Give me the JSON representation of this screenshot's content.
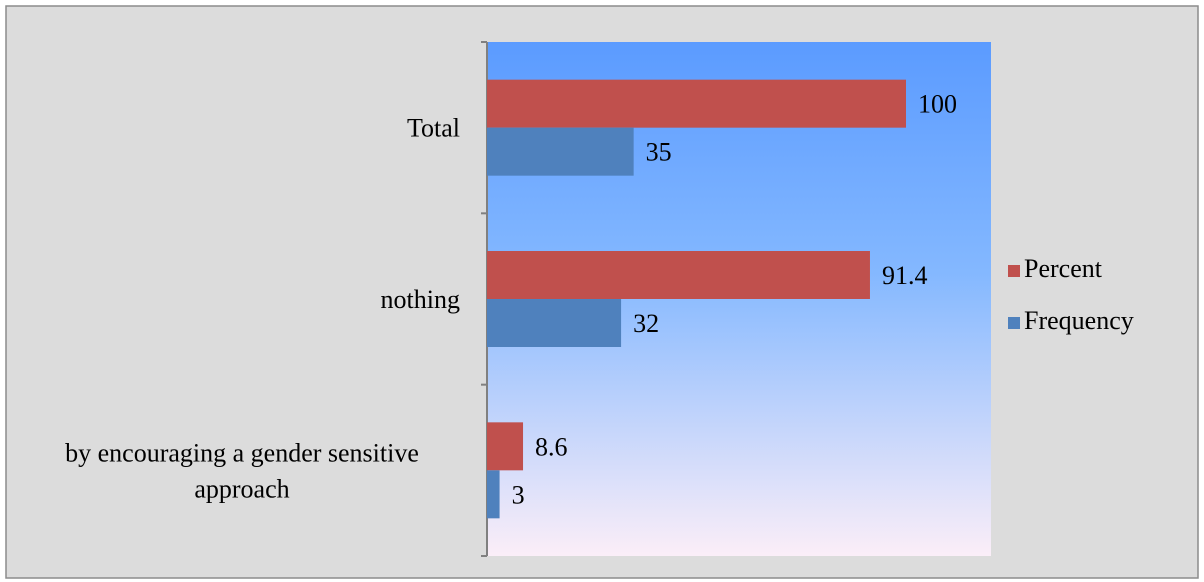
{
  "chart_data": {
    "type": "bar",
    "orientation": "horizontal",
    "categories": [
      "Total",
      "nothing",
      "by encouraging a gender sensitive approach"
    ],
    "category_lines": [
      [
        "Total"
      ],
      [
        "nothing"
      ],
      [
        "by encouraging a gender sensitive",
        "approach"
      ]
    ],
    "series": [
      {
        "name": "Percent",
        "values": [
          100,
          91.4,
          8.6
        ],
        "color": "#c0504d"
      },
      {
        "name": "Frequency",
        "values": [
          35,
          32,
          3
        ],
        "color": "#4f81bd"
      }
    ],
    "xlim": [
      0,
      120
    ],
    "grid": false,
    "legend_position": "right"
  },
  "colors": {
    "chart_background": "#dcdcdc",
    "plot_gradient_top": "#5b9bff",
    "plot_gradient_mid": "#84b8ff",
    "plot_gradient_bottom": "#fbeef8",
    "border": "#8c8c8c",
    "axis": "#808080"
  }
}
